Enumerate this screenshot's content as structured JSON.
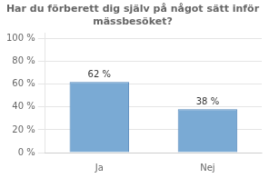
{
  "chart_data": {
    "type": "bar",
    "title": "Har du förberett dig själv på något sätt inför\nmässbesöket?",
    "categories": [
      "Ja",
      "Nej"
    ],
    "values": [
      62,
      38
    ],
    "value_labels": [
      "62 %",
      "38 %"
    ],
    "data_labels": true,
    "color": "#7aaad4",
    "ylim": [
      0,
      105
    ],
    "yticks": [
      {
        "value": 0,
        "label": "0 %"
      },
      {
        "value": 20,
        "label": "20 %"
      },
      {
        "value": 40,
        "label": "40 %"
      },
      {
        "value": 60,
        "label": "60 %"
      },
      {
        "value": 80,
        "label": "80 %"
      },
      {
        "value": 100,
        "label": "100 %"
      }
    ],
    "grid": true
  }
}
